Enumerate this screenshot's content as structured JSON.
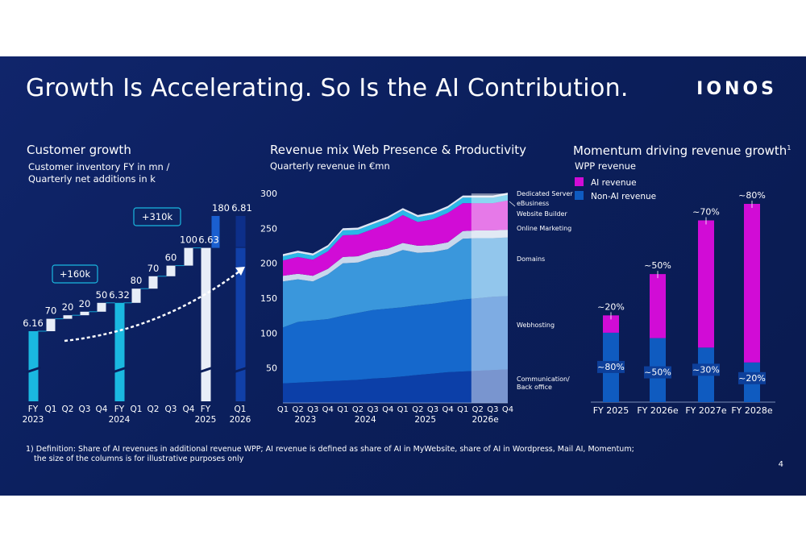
{
  "title": "Growth Is Accelerating. So Is the AI Contribution.",
  "logo": "IONOS",
  "footnote_line1": "1) Definition: Share of AI revenues in additional revenue WPP; AI revenue is defined as share of AI in MyWebsite, share of AI in Wordpress, Mail AI, Momentum;",
  "footnote_line2": "the size of the columns is for illustrative purposes only",
  "page_number": "4",
  "customer": {
    "heading": "Customer growth",
    "sub1": "Customer inventory FY in mn /",
    "sub2": "Quarterly net additions in k"
  },
  "revenue_mix": {
    "heading": "Revenue mix Web Presence & Productivity",
    "sub": "Quarterly revenue in €mn"
  },
  "momentum": {
    "heading": "Momentum driving revenue growth",
    "heading_sup": "1",
    "sub": "WPP revenue"
  },
  "colors": {
    "cyan": "#1ab8e0",
    "white_bar": "#e8eef8",
    "navy_bar": "#1140a8",
    "magenta": "#d10cd6",
    "ai_blue": "#0f5bc0",
    "connector": "#12a6d6"
  },
  "chart_data": [
    {
      "type": "bar",
      "subtype": "waterfall",
      "name": "customer_growth",
      "categories": [
        {
          "top": "FY",
          "bottom": "2023"
        },
        {
          "top": "Q1",
          "bottom": ""
        },
        {
          "top": "Q2",
          "bottom": ""
        },
        {
          "top": "Q3",
          "bottom": ""
        },
        {
          "top": "Q4",
          "bottom": ""
        },
        {
          "top": "FY",
          "bottom": "2024"
        },
        {
          "top": "Q1",
          "bottom": ""
        },
        {
          "top": "Q2",
          "bottom": ""
        },
        {
          "top": "Q3",
          "bottom": ""
        },
        {
          "top": "Q4",
          "bottom": ""
        },
        {
          "top": "FY",
          "bottom": "2025"
        },
        {
          "top": "Q1",
          "bottom": "2026"
        }
      ],
      "bars": [
        {
          "kind": "total",
          "value": 6.16,
          "label": "6.16",
          "color": "cyan"
        },
        {
          "kind": "delta",
          "value": 70,
          "label": "70",
          "color": "white"
        },
        {
          "kind": "delta",
          "value": 20,
          "label": "20",
          "color": "white"
        },
        {
          "kind": "delta",
          "value": 20,
          "label": "20",
          "color": "white"
        },
        {
          "kind": "delta",
          "value": 50,
          "label": "50",
          "color": "white"
        },
        {
          "kind": "total",
          "value": 6.32,
          "label": "6.32",
          "color": "cyan"
        },
        {
          "kind": "delta",
          "value": 80,
          "label": "80",
          "color": "white"
        },
        {
          "kind": "delta",
          "value": 70,
          "label": "70",
          "color": "white"
        },
        {
          "kind": "delta",
          "value": 60,
          "label": "60",
          "color": "white"
        },
        {
          "kind": "delta",
          "value": 100,
          "label": "100",
          "color": "white"
        },
        {
          "kind": "total",
          "value": 6.63,
          "label": "6.63",
          "color": "white"
        },
        {
          "kind": "total",
          "value": 6.81,
          "label": "6.81",
          "delta": 180,
          "delta_label": "180",
          "color": "navy"
        }
      ],
      "callouts": [
        "+160k",
        "+310k"
      ]
    },
    {
      "type": "area",
      "stacked": true,
      "name": "revenue_mix",
      "x": [
        "Q1",
        "Q2",
        "Q3",
        "Q4",
        "Q1",
        "Q2",
        "Q3",
        "Q4",
        "Q1",
        "Q2",
        "Q3",
        "Q4",
        "Q1",
        "Q2",
        "Q3",
        "Q4"
      ],
      "year_labels": [
        {
          "text": "2023",
          "at": 1.5
        },
        {
          "text": "2024",
          "at": 5.5
        },
        {
          "text": "2025",
          "at": 9.5
        },
        {
          "text": "2026e",
          "at": 13.5
        }
      ],
      "forecast_from": 13,
      "yticks": [
        50,
        100,
        150,
        200,
        250,
        300
      ],
      "ylim": [
        0,
        300
      ],
      "series": [
        {
          "name": "Communication/ Back office",
          "color": "#0c3fa8",
          "values": [
            28,
            29,
            30,
            31,
            32,
            33,
            35,
            36,
            38,
            40,
            42,
            44,
            45,
            46,
            47,
            48
          ]
        },
        {
          "name": "Webhosting",
          "color": "#1568cc",
          "values": [
            80,
            87,
            88,
            89,
            93,
            96,
            98,
            99,
            99,
            100,
            100,
            101,
            103,
            104,
            105,
            105
          ]
        },
        {
          "name": "Domains",
          "color": "#3a97dc",
          "values": [
            66,
            61,
            56,
            64,
            75,
            72,
            75,
            76,
            82,
            75,
            74,
            75,
            87,
            86,
            84,
            84
          ]
        },
        {
          "name": "Online Marketing",
          "color": "#c8d8ec",
          "values": [
            8,
            8,
            8,
            8,
            9,
            9,
            9,
            10,
            10,
            10,
            10,
            10,
            11,
            11,
            11,
            11
          ]
        },
        {
          "name": "Website Builder",
          "color": "#d10cd6",
          "values": [
            22,
            24,
            23,
            25,
            31,
            31,
            32,
            36,
            40,
            34,
            37,
            42,
            40,
            39,
            39,
            42
          ]
        },
        {
          "name": "eBusiness",
          "color": "#2bb7e8",
          "values": [
            6,
            6,
            6,
            6,
            7,
            7,
            7,
            7,
            7,
            7,
            7,
            7,
            8,
            8,
            8,
            8
          ]
        },
        {
          "name": "Dedicated Server",
          "color": "#dde6f4",
          "values": [
            3,
            3,
            3,
            3,
            3,
            3,
            3,
            3,
            3,
            3,
            3,
            3,
            3,
            3,
            3,
            3
          ]
        }
      ]
    },
    {
      "type": "bar",
      "stacked": true,
      "name": "momentum",
      "categories": [
        "FY 2025",
        "FY 2026e",
        "FY 2027e",
        "FY 2028e"
      ],
      "series": [
        {
          "name": "Non-AI revenue",
          "color": "#0f5bc0",
          "labels": [
            "~80%",
            "~50%",
            "~30%",
            "~20%"
          ],
          "share": [
            0.8,
            0.5,
            0.3,
            0.2
          ]
        },
        {
          "name": "AI revenue",
          "color": "#d10cd6",
          "labels": [
            "~20%",
            "~50%",
            "~70%",
            "~80%"
          ],
          "share": [
            0.2,
            0.5,
            0.7,
            0.8
          ]
        }
      ],
      "relative_height": [
        0.21,
        0.31,
        0.44,
        0.48
      ]
    }
  ]
}
